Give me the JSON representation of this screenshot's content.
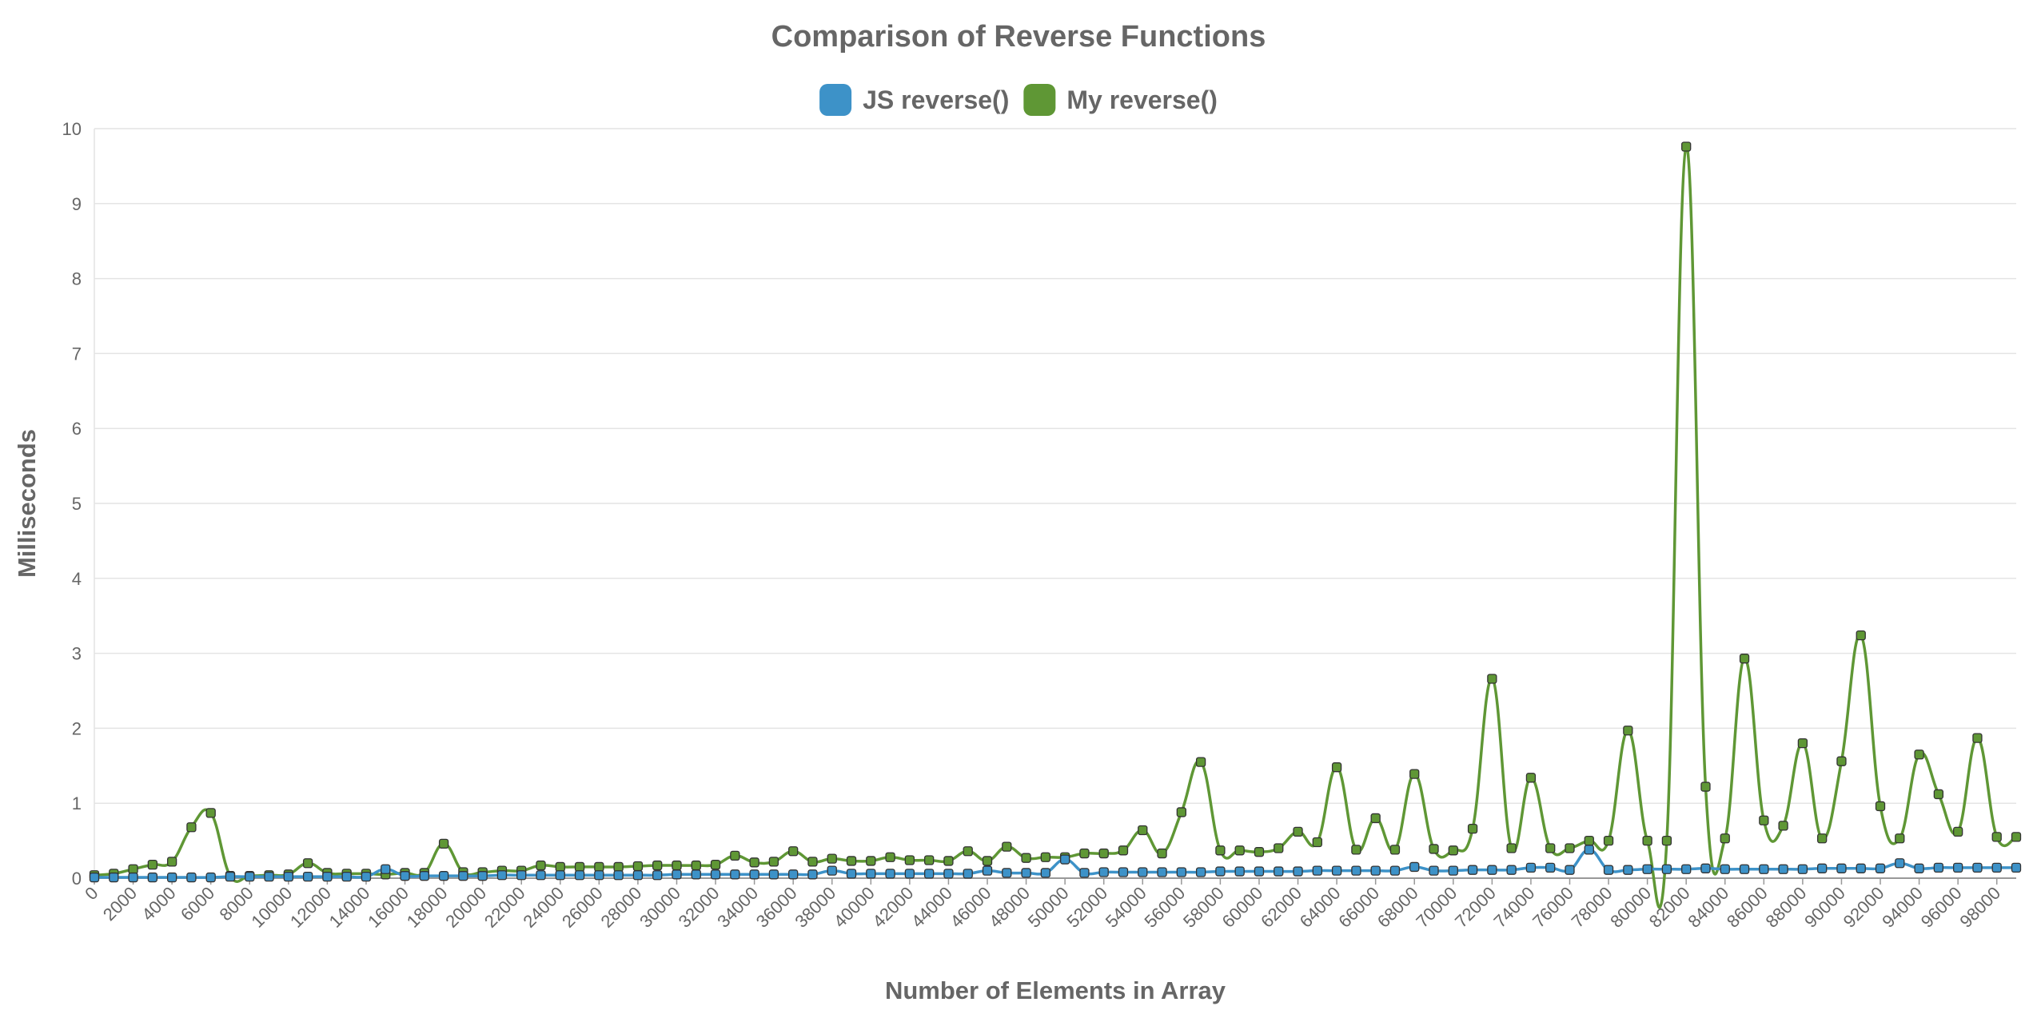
{
  "chart_data": {
    "type": "line",
    "title": "Comparison of Reverse Functions",
    "xlabel": "Number of Elements in Array",
    "ylabel": "Milliseconds",
    "ylim": [
      0,
      10
    ],
    "yticks": [
      "0",
      "1",
      "2",
      "3",
      "4",
      "5",
      "6",
      "7",
      "8",
      "9",
      "10"
    ],
    "xtick_labels": [
      "0",
      "2000",
      "4000",
      "6000",
      "8000",
      "10000",
      "12000",
      "14000",
      "16000",
      "18000",
      "20000",
      "22000",
      "24000",
      "26000",
      "28000",
      "30000",
      "32000",
      "34000",
      "36000",
      "38000",
      "40000",
      "42000",
      "44000",
      "46000",
      "48000",
      "50000",
      "52000",
      "54000",
      "56000",
      "58000",
      "60000",
      "62000",
      "64000",
      "66000",
      "68000",
      "70000",
      "72000",
      "74000",
      "76000",
      "78000",
      "80000",
      "82000",
      "84000",
      "86000",
      "88000",
      "90000",
      "92000",
      "94000",
      "96000",
      "98000"
    ],
    "x_start": 0,
    "x_step": 1000,
    "legend_position": "top",
    "grid": true,
    "series": [
      {
        "name": "JS reverse()",
        "color": "#3d92c8",
        "values": [
          0.01,
          0.01,
          0.01,
          0.01,
          0.01,
          0.01,
          0.01,
          0.02,
          0.02,
          0.02,
          0.02,
          0.02,
          0.02,
          0.02,
          0.02,
          0.12,
          0.03,
          0.03,
          0.03,
          0.03,
          0.03,
          0.04,
          0.04,
          0.04,
          0.04,
          0.04,
          0.04,
          0.04,
          0.04,
          0.04,
          0.05,
          0.05,
          0.05,
          0.05,
          0.05,
          0.05,
          0.05,
          0.05,
          0.1,
          0.06,
          0.06,
          0.06,
          0.06,
          0.06,
          0.06,
          0.06,
          0.1,
          0.07,
          0.07,
          0.07,
          0.25,
          0.07,
          0.08,
          0.08,
          0.08,
          0.08,
          0.08,
          0.08,
          0.09,
          0.09,
          0.09,
          0.09,
          0.09,
          0.1,
          0.1,
          0.1,
          0.1,
          0.1,
          0.15,
          0.1,
          0.1,
          0.11,
          0.11,
          0.11,
          0.14,
          0.14,
          0.11,
          0.38,
          0.11,
          0.11,
          0.12,
          0.12,
          0.12,
          0.13,
          0.12,
          0.12,
          0.12,
          0.12,
          0.12,
          0.13,
          0.13,
          0.13,
          0.13,
          0.2,
          0.13,
          0.14,
          0.14,
          0.14,
          0.14,
          0.14
        ]
      },
      {
        "name": "My reverse()",
        "color": "#5f9735",
        "values": [
          0.04,
          0.06,
          0.12,
          0.18,
          0.22,
          0.68,
          0.87,
          0.03,
          0.03,
          0.04,
          0.05,
          0.2,
          0.07,
          0.06,
          0.06,
          0.05,
          0.07,
          0.07,
          0.46,
          0.08,
          0.08,
          0.1,
          0.1,
          0.17,
          0.15,
          0.15,
          0.15,
          0.15,
          0.16,
          0.17,
          0.17,
          0.17,
          0.18,
          0.3,
          0.21,
          0.22,
          0.36,
          0.22,
          0.26,
          0.23,
          0.23,
          0.28,
          0.24,
          0.24,
          0.23,
          0.36,
          0.23,
          0.42,
          0.27,
          0.28,
          0.28,
          0.33,
          0.33,
          0.37,
          0.64,
          0.33,
          0.88,
          1.55,
          0.37,
          0.37,
          0.35,
          0.4,
          0.62,
          0.48,
          1.48,
          0.38,
          0.8,
          0.38,
          1.39,
          0.39,
          0.37,
          0.66,
          2.66,
          0.4,
          1.34,
          0.4,
          0.4,
          0.5,
          0.5,
          1.97,
          0.5,
          0.5,
          9.76,
          1.22,
          0.53,
          2.93,
          0.77,
          0.7,
          1.8,
          0.53,
          1.56,
          3.24,
          0.96,
          0.53,
          1.65,
          1.12,
          0.62,
          1.87,
          0.55,
          0.55
        ]
      }
    ]
  }
}
